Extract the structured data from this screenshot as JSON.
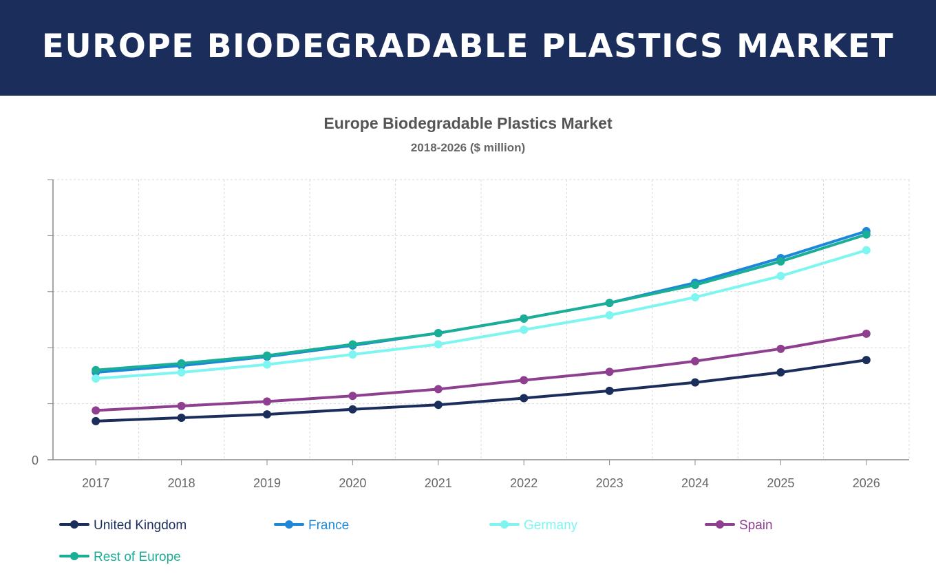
{
  "banner": {
    "title": "EUROPE BIODEGRADABLE PLASTICS MARKET"
  },
  "chart_data": {
    "type": "line",
    "title": "Europe Biodegradable Plastics Market",
    "subtitle": "2018-2026 ($ million)",
    "xlabel": "",
    "ylabel": "",
    "x": [
      "2017",
      "2018",
      "2019",
      "2020",
      "2021",
      "2022",
      "2023",
      "2024",
      "2025",
      "2026"
    ],
    "y_tick_labels": [
      "0"
    ],
    "ylim": [
      0,
      250
    ],
    "y_tick_step": 50,
    "grid": true,
    "legend_position": "bottom",
    "series": [
      {
        "name": "United Kingdom",
        "color": "#1b2d5b",
        "values": [
          34.5,
          37.5,
          40.5,
          45,
          49,
          55,
          61.5,
          69,
          78,
          89
        ]
      },
      {
        "name": "France",
        "color": "#1d88d9",
        "values": [
          78,
          84,
          92,
          102,
          113,
          126,
          140,
          158,
          180,
          204
        ]
      },
      {
        "name": "Germany",
        "color": "#7ef5f0",
        "values": [
          72.5,
          78,
          85,
          94,
          103,
          116,
          129,
          145,
          164,
          187
        ]
      },
      {
        "name": "Spain",
        "color": "#8e3f8f",
        "values": [
          44,
          48,
          52,
          57,
          63,
          71,
          78.5,
          88,
          99,
          112.5
        ]
      },
      {
        "name": "Rest of Europe",
        "color": "#1aae97",
        "values": [
          80,
          86,
          93,
          103,
          113,
          126,
          140,
          156,
          177,
          201
        ]
      }
    ]
  }
}
